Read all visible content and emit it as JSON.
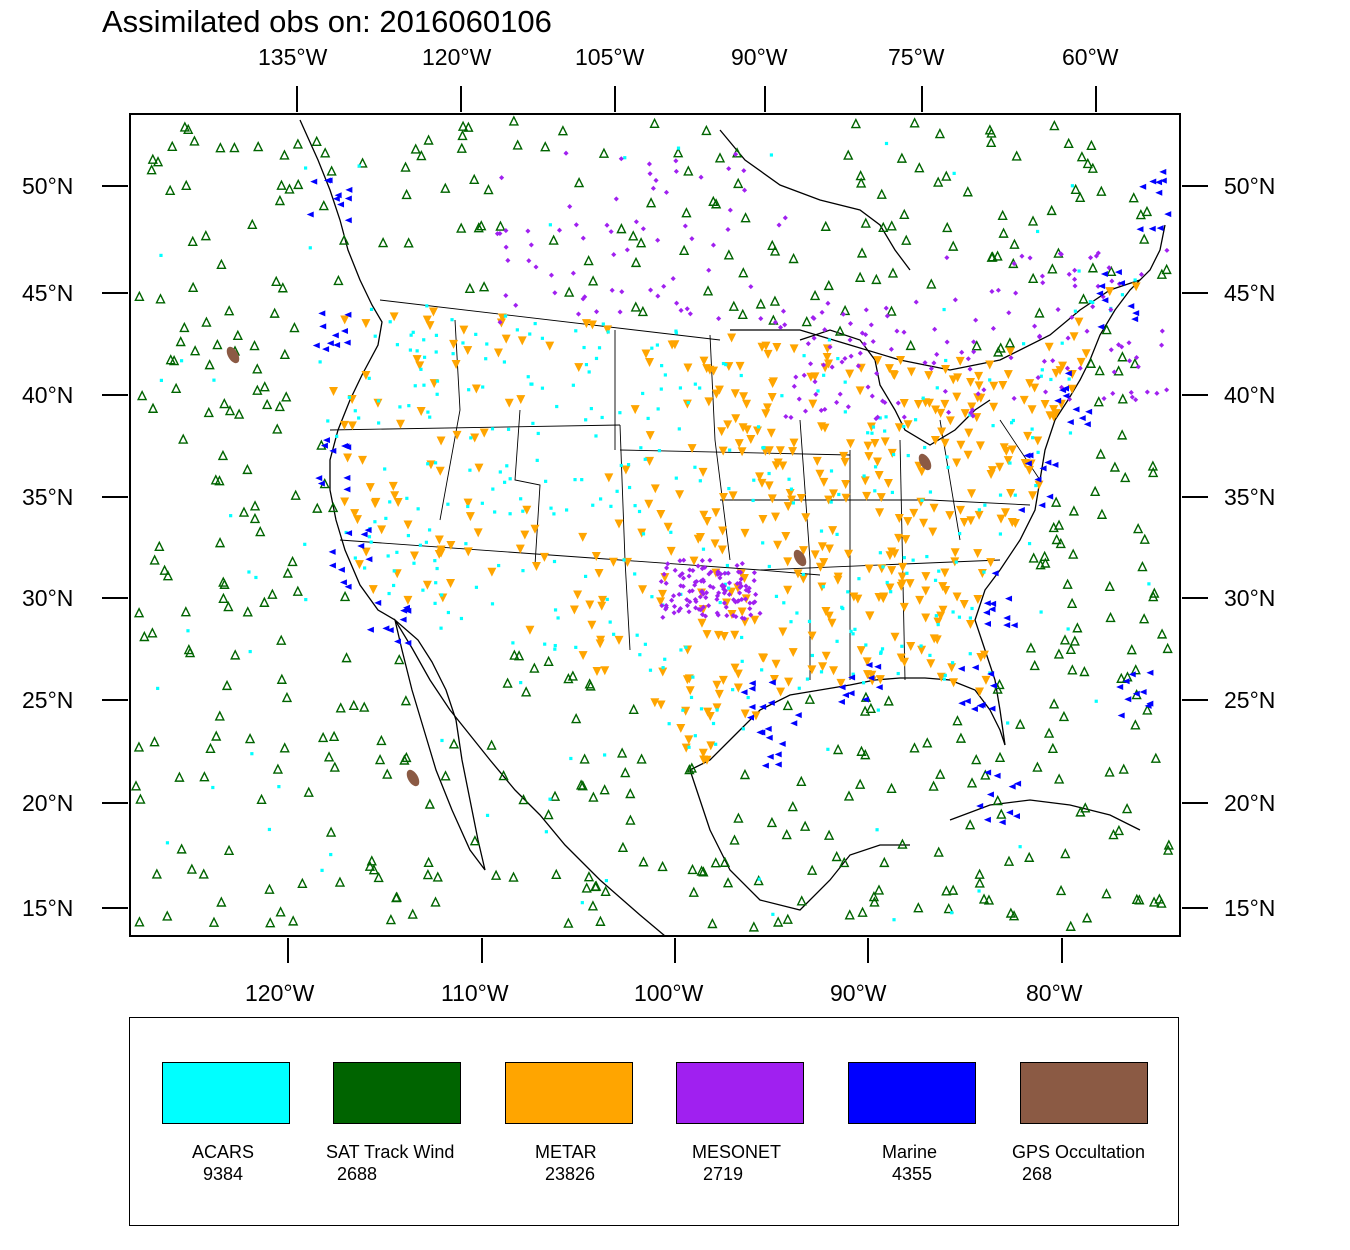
{
  "title": "Assimilated obs on: 2016060106",
  "axes": {
    "top_lon_labels": [
      "135°W",
      "120°W",
      "105°W",
      "90°W",
      "75°W",
      "60°W"
    ],
    "bottom_lon_labels": [
      "120°W",
      "110°W",
      "100°W",
      "90°W",
      "80°W"
    ],
    "lat_labels": [
      "50°N",
      "45°N",
      "40°N",
      "35°N",
      "30°N",
      "25°N",
      "20°N",
      "15°N"
    ]
  },
  "legend": [
    {
      "name": "ACARS",
      "count": "9384",
      "color": "#00ffff",
      "marker": "square-dot"
    },
    {
      "name": "SAT Track Wind",
      "count": "2688",
      "color": "#006400",
      "marker": "triangle-up-icon"
    },
    {
      "name": "METAR",
      "count": "23826",
      "color": "#ffa500",
      "marker": "triangle-down-icon"
    },
    {
      "name": "MESONET",
      "count": "2719",
      "color": "#a020f0",
      "marker": "diamond-icon"
    },
    {
      "name": "Marine",
      "count": "4355",
      "color": "#0000ff",
      "marker": "triangle-left-icon"
    },
    {
      "name": "GPS Occultation",
      "count": "268",
      "color": "#8b5a44",
      "marker": "ellipse-icon"
    }
  ],
  "chart_data": {
    "type": "scatter",
    "title": "Assimilated obs on: 2016060106",
    "projection": "Lambert conformal",
    "lat_range": [
      14,
      53
    ],
    "lon_range": [
      -128,
      -62
    ],
    "series": [
      {
        "name": "ACARS",
        "count": 9384
      },
      {
        "name": "SAT Track Wind",
        "count": 2688
      },
      {
        "name": "METAR",
        "count": 23826
      },
      {
        "name": "MESONET",
        "count": 2719
      },
      {
        "name": "Marine",
        "count": 4355
      },
      {
        "name": "GPS Occultation",
        "count": 268
      }
    ]
  }
}
